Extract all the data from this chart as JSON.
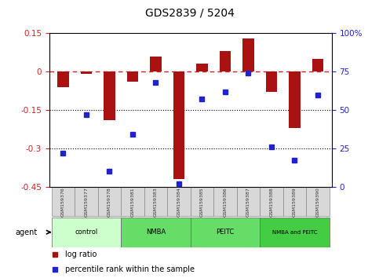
{
  "title": "GDS2839 / 5204",
  "samples": [
    "GSM159376",
    "GSM159377",
    "GSM159378",
    "GSM159381",
    "GSM159383",
    "GSM159384",
    "GSM159385",
    "GSM159386",
    "GSM159387",
    "GSM159388",
    "GSM159389",
    "GSM159390"
  ],
  "log_ratio": [
    -0.06,
    -0.01,
    -0.19,
    -0.04,
    0.06,
    -0.42,
    0.03,
    0.08,
    0.13,
    -0.08,
    -0.22,
    0.05
  ],
  "percentile_rank": [
    22,
    47,
    10,
    34,
    68,
    2,
    57,
    62,
    74,
    26,
    17,
    60
  ],
  "groups": [
    {
      "label": "control",
      "start": 0,
      "end": 3,
      "color": "#ccffcc"
    },
    {
      "label": "NMBA",
      "start": 3,
      "end": 6,
      "color": "#66dd66"
    },
    {
      "label": "PEITC",
      "start": 6,
      "end": 9,
      "color": "#66dd66"
    },
    {
      "label": "NMBA and PEITC",
      "start": 9,
      "end": 12,
      "color": "#44cc44"
    }
  ],
  "ylim_left": [
    -0.45,
    0.15
  ],
  "ylim_right": [
    0,
    100
  ],
  "yticks_left": [
    0.15,
    0,
    -0.15,
    -0.3,
    -0.45
  ],
  "yticks_right": [
    100,
    75,
    50,
    25,
    0
  ],
  "bar_color": "#aa1111",
  "dot_color": "#2222cc",
  "dotted_lines": [
    -0.15,
    -0.3
  ],
  "bar_width": 0.5,
  "figsize": [
    4.83,
    3.54
  ],
  "dpi": 100,
  "group_colors_light": "#ccffcc",
  "group_colors_mid": "#66dd66",
  "group_colors_dark": "#44cc44",
  "sample_cell_color": "#d8d8d8",
  "legend_bar_label": "log ratio",
  "legend_dot_label": "percentile rank within the sample",
  "agent_label": "agent"
}
